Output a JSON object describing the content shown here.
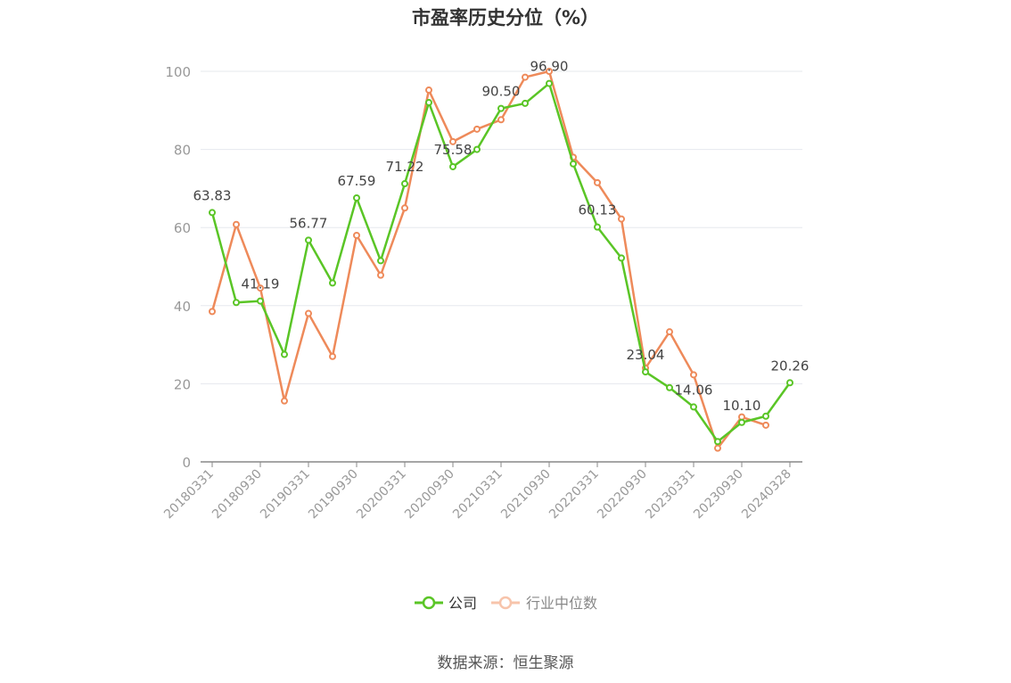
{
  "chart_data": {
    "type": "line",
    "title": "市盈率历史分位（%）",
    "xlabel": "",
    "ylabel": "",
    "ylim": [
      0,
      100
    ],
    "yticks": [
      0,
      20,
      40,
      60,
      80,
      100
    ],
    "grid": true,
    "legend_position": "bottom",
    "x": [
      "20180331",
      "20180630",
      "20180930",
      "20181231",
      "20190331",
      "20190630",
      "20190930",
      "20191231",
      "20200331",
      "20200630",
      "20200930",
      "20201231",
      "20210331",
      "20210630",
      "20210930",
      "20211231",
      "20220331",
      "20220630",
      "20220930",
      "20221231",
      "20230331",
      "20230630",
      "20230930",
      "20231231",
      "20240328"
    ],
    "xtick_labels": [
      "20180331",
      "20180930",
      "20190331",
      "20190930",
      "20200331",
      "20200930",
      "20210331",
      "20210930",
      "20220331",
      "20220930",
      "20230331",
      "20230930",
      "20240328"
    ],
    "series": [
      {
        "name": "公司",
        "color": "#5ac526",
        "values": [
          63.83,
          40.8,
          41.19,
          27.5,
          56.77,
          45.8,
          67.59,
          51.5,
          71.22,
          92.0,
          75.58,
          80.0,
          90.5,
          91.8,
          96.9,
          76.3,
          60.13,
          52.2,
          23.04,
          19.0,
          14.06,
          5.2,
          10.1,
          11.7,
          20.26
        ],
        "labels": [
          "63.83",
          null,
          "41.19",
          null,
          "56.77",
          null,
          "67.59",
          null,
          "71.22",
          null,
          "75.58",
          null,
          "90.50",
          null,
          "96.90",
          null,
          "60.13",
          null,
          "23.04",
          null,
          "14.06",
          null,
          "10.10",
          null,
          "20.26"
        ]
      },
      {
        "name": "行业中位数",
        "color": "#ee8a5a",
        "values": [
          38.5,
          60.8,
          44.5,
          15.6,
          38.0,
          27.0,
          58.0,
          47.8,
          65.0,
          95.2,
          82.0,
          85.2,
          87.6,
          98.5,
          100.0,
          78.0,
          71.5,
          62.2,
          24.0,
          33.3,
          22.3,
          3.5,
          11.5,
          9.4,
          null
        ]
      }
    ]
  },
  "source": "数据来源：恒生聚源"
}
